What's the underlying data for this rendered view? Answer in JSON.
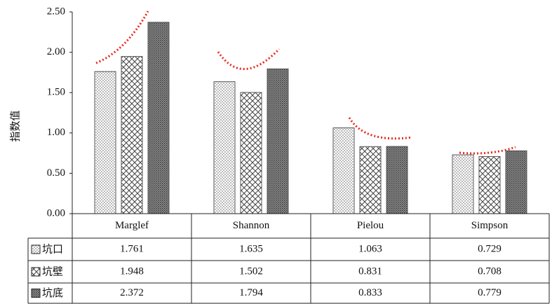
{
  "chart_data": {
    "type": "bar",
    "y_label": "指数值",
    "categories": [
      "Marglef",
      "Shannon",
      "Pielou",
      "Simpson"
    ],
    "series": [
      {
        "name": "坑口",
        "pattern": "dots",
        "color": "#555555",
        "values": [
          1.761,
          1.635,
          1.063,
          0.729
        ]
      },
      {
        "name": "坑壁",
        "pattern": "cross",
        "color": "#555555",
        "values": [
          1.948,
          1.502,
          0.831,
          0.708
        ]
      },
      {
        "name": "坑底",
        "pattern": "dense",
        "color": "#555555",
        "values": [
          2.372,
          1.794,
          0.833,
          0.779
        ]
      }
    ],
    "ylim": [
      0,
      2.5
    ],
    "yticks": [
      {
        "value": 0,
        "label": "0.00"
      },
      {
        "value": 0.5,
        "label": "0.50"
      },
      {
        "value": 1,
        "label": "1.00"
      },
      {
        "value": 1.5,
        "label": "1.50"
      },
      {
        "value": 2,
        "label": "2.00"
      },
      {
        "value": 2.5,
        "label": "2.50"
      }
    ],
    "data_table": true
  }
}
